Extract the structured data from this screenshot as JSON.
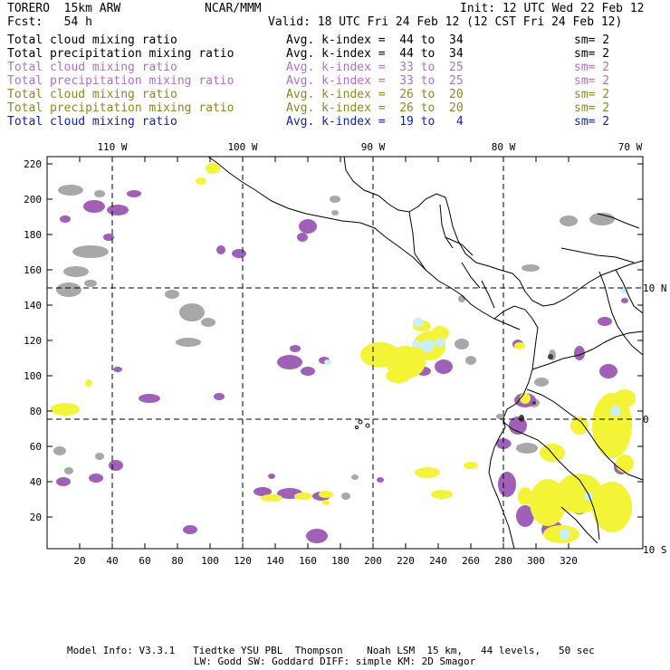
{
  "header": {
    "model": "TORERO  15km ARW",
    "center": "NCAR/MMM",
    "init": "Init: 12 UTC Wed 22 Feb 12",
    "fcst": "Fcst:   54 h",
    "valid": "Valid: 18 UTC Fri 24 Feb 12 (12 CST Fri 24 Feb 12)"
  },
  "legend": [
    {
      "field": "Total cloud mixing ratio",
      "kidx": "Avg. k-index =  44 to  34",
      "sm": "sm= 2",
      "color": "#000000"
    },
    {
      "field": "Total precipitation mixing ratio",
      "kidx": "Avg. k-index =  44 to  34",
      "sm": "sm= 2",
      "color": "#000000"
    },
    {
      "field": "Total cloud mixing ratio",
      "kidx": "Avg. k-index =  33 to  25",
      "sm": "sm= 2",
      "color": "#b070c8"
    },
    {
      "field": "Total precipitation mixing ratio",
      "kidx": "Avg. k-index =  33 to  25",
      "sm": "sm= 2",
      "color": "#b070c8"
    },
    {
      "field": "Total cloud mixing ratio",
      "kidx": "Avg. k-index =  26 to  20",
      "sm": "sm= 2",
      "color": "#8a8a20"
    },
    {
      "field": "Total precipitation mixing ratio",
      "kidx": "Avg. k-index =  26 to  20",
      "sm": "sm= 2",
      "color": "#8a8a20"
    },
    {
      "field": "Total cloud mixing ratio",
      "kidx": "Avg. k-index =  19 to   4",
      "sm": "sm= 2",
      "color": "#1020c0"
    }
  ],
  "map": {
    "top_lon_labels": [
      "110 W",
      "100 W",
      "90 W",
      "80 W",
      "70 W"
    ],
    "right_lat_labels": [
      "10 N",
      "0",
      "10 S"
    ],
    "x_ticks": [
      "20",
      "40",
      "60",
      "80",
      "100",
      "120",
      "140",
      "160",
      "180",
      "200",
      "220",
      "240",
      "260",
      "280",
      "300",
      "320"
    ],
    "y_ticks": [
      "20",
      "40",
      "60",
      "80",
      "100",
      "120",
      "140",
      "160",
      "180",
      "200",
      "220"
    ],
    "colors": {
      "gray": "#a8a8a8",
      "purple": "#a060b8",
      "yellow": "#f4f436",
      "cyan": "#c8f0f8",
      "dark": "#404040"
    }
  },
  "footer": {
    "line1": "Model Info: V3.3.1   Tiedtke YSU PBL  Thompson    Noah LSM  15 km,   44 levels,   50 sec",
    "line2": "LW: Godd SW: Goddard DIFF: simple KM: 2D Smagor"
  }
}
